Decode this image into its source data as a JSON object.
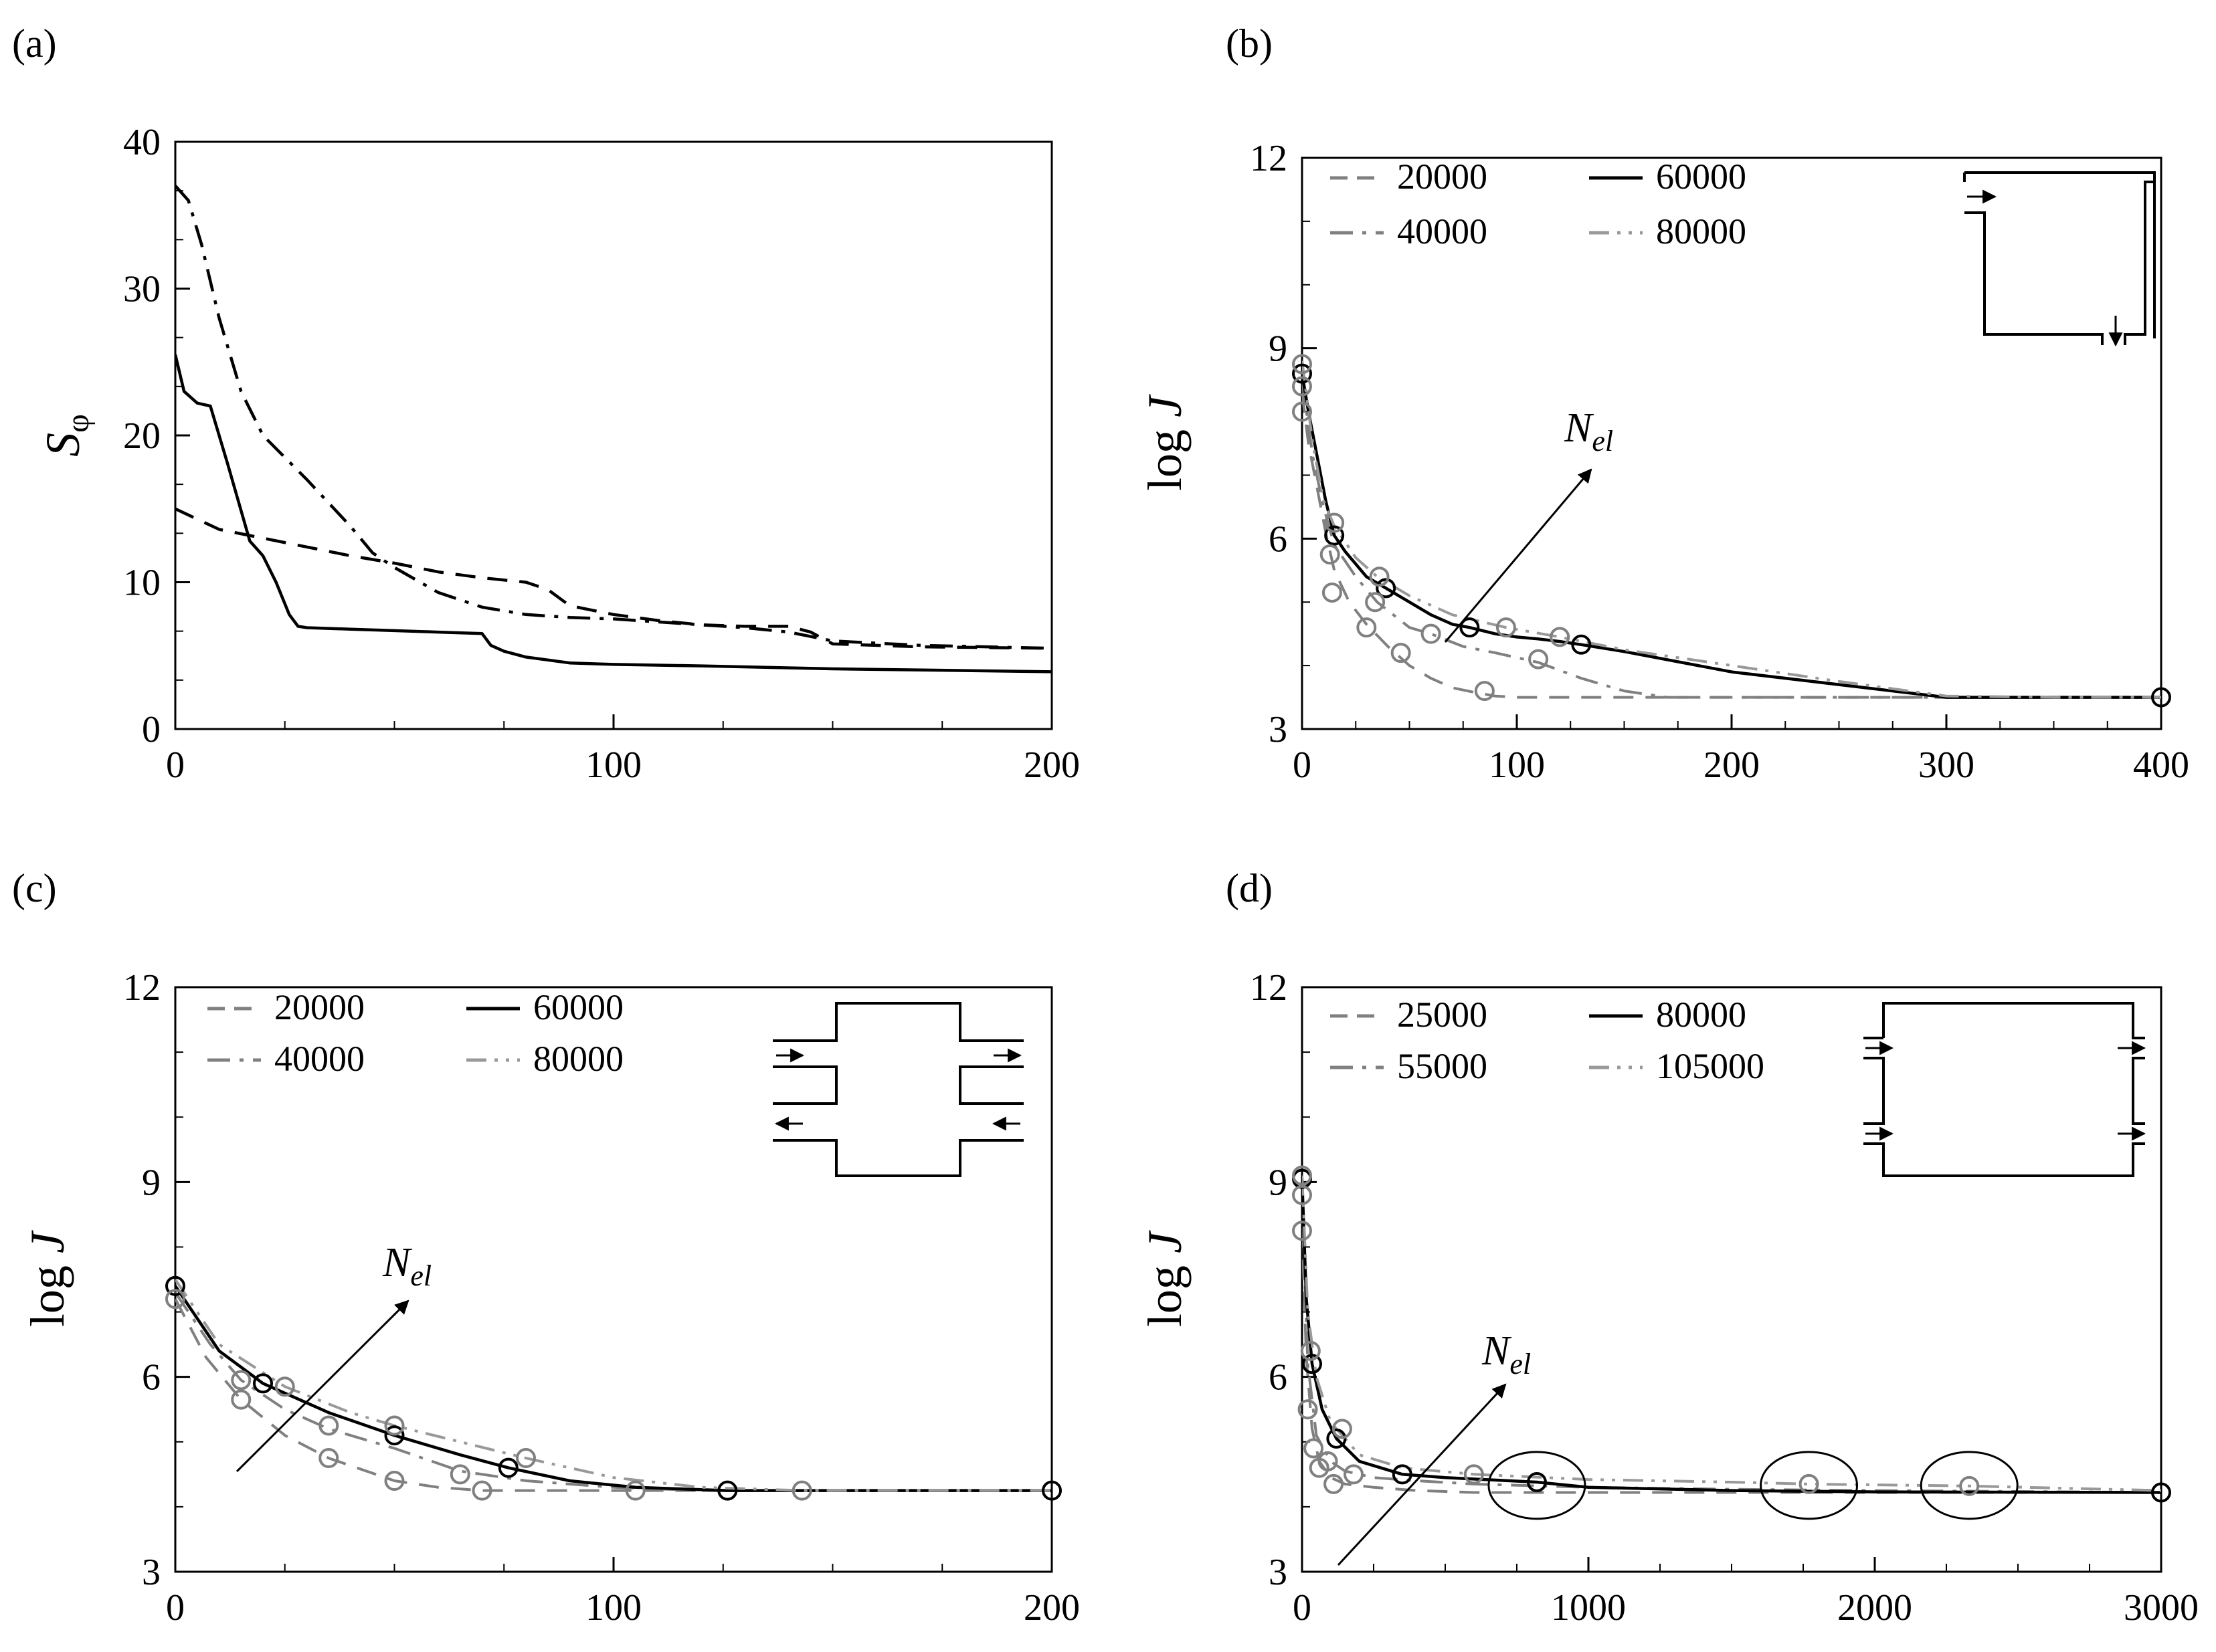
{
  "colors": {
    "black": "#000000",
    "gray": "#808080",
    "lightgray": "#999999"
  },
  "annotation": {
    "nel_main": "N",
    "nel_sub": "el"
  },
  "chart_data": [
    {
      "id": "a",
      "panel_label": "(a)",
      "type": "line",
      "ylabel": "S",
      "ylabel_sub": "φ",
      "xlim": [
        0,
        200
      ],
      "ylim": [
        0,
        40
      ],
      "xticks": [
        0,
        100,
        200
      ],
      "xtick_labels": [
        "0",
        "100",
        "200"
      ],
      "yticks": [
        0,
        10,
        20,
        30,
        40
      ],
      "ytick_labels": [
        "0",
        "10",
        "20",
        "30",
        "40"
      ],
      "legend": [],
      "series": [
        {
          "name": "dashed",
          "style": "dash",
          "color": "#000000",
          "x": [
            0,
            10,
            20,
            30,
            40,
            50,
            60,
            70,
            80,
            85,
            90,
            100,
            110,
            120,
            130,
            140,
            145,
            150,
            170,
            200
          ],
          "y": [
            15,
            13.6,
            13,
            12.4,
            11.8,
            11.3,
            10.7,
            10.3,
            10.0,
            9.5,
            8.4,
            7.8,
            7.4,
            7.1,
            7.0,
            7.0,
            6.6,
            5.8,
            5.6,
            5.5
          ]
        },
        {
          "name": "dash-dot",
          "style": "dashdot",
          "color": "#000000",
          "x": [
            0,
            3,
            6,
            10,
            15,
            20,
            30,
            40,
            45,
            50,
            60,
            70,
            80,
            90,
            100,
            110,
            120,
            130,
            140,
            150,
            170,
            200
          ],
          "y": [
            37,
            36,
            33,
            28,
            23,
            20,
            17,
            13.8,
            12,
            11,
            9.3,
            8.3,
            7.8,
            7.6,
            7.5,
            7.3,
            7.1,
            6.9,
            6.6,
            6.0,
            5.7,
            5.5
          ]
        },
        {
          "name": "solid",
          "style": "solid",
          "color": "#000000",
          "x": [
            0,
            2,
            5,
            8,
            12,
            17,
            20,
            23,
            26,
            28,
            30,
            40,
            50,
            60,
            70,
            72,
            75,
            80,
            90,
            100,
            120,
            150,
            200
          ],
          "y": [
            25.5,
            23,
            22.2,
            22,
            18,
            12.8,
            11.8,
            10,
            7.8,
            7.0,
            6.9,
            6.8,
            6.7,
            6.6,
            6.5,
            5.7,
            5.3,
            4.9,
            4.5,
            4.4,
            4.3,
            4.1,
            3.9
          ]
        }
      ],
      "markers": [],
      "ellipses": []
    },
    {
      "id": "b",
      "panel_label": "(b)",
      "type": "line",
      "ylabel": "log J",
      "xlim": [
        0,
        400
      ],
      "ylim": [
        3,
        12
      ],
      "xticks": [
        0,
        100,
        200,
        300,
        400
      ],
      "xtick_labels": [
        "0",
        "100",
        "200",
        "300",
        "400"
      ],
      "yticks": [
        3,
        6,
        9,
        12
      ],
      "ytick_labels": [
        "3",
        "6",
        "9",
        "12"
      ],
      "legend": [
        {
          "label": "20000",
          "style": "dash",
          "color": "#808080"
        },
        {
          "label": "60000",
          "style": "solid",
          "color": "#000000"
        },
        {
          "label": "40000",
          "style": "dashdot",
          "color": "#808080"
        },
        {
          "label": "80000",
          "style": "dashdotdot",
          "color": "#999999"
        }
      ],
      "series": [
        {
          "name": "20000",
          "style": "dash",
          "color": "#808080",
          "x": [
            0,
            3,
            7,
            11,
            15,
            22,
            30,
            40,
            50,
            60,
            70,
            80,
            90,
            100,
            120,
            150,
            200,
            400
          ],
          "y": [
            8.3,
            7.5,
            6.8,
            6.1,
            5.5,
            5.0,
            4.65,
            4.3,
            4.0,
            3.8,
            3.65,
            3.58,
            3.52,
            3.5,
            3.5,
            3.5,
            3.5,
            3.5
          ]
        },
        {
          "name": "40000",
          "style": "dashdot",
          "color": "#808080",
          "x": [
            0,
            5,
            10,
            15,
            25,
            35,
            50,
            60,
            75,
            90,
            110,
            130,
            150,
            170,
            200,
            400
          ],
          "y": [
            8.5,
            7.3,
            6.5,
            5.9,
            5.4,
            5.0,
            4.6,
            4.5,
            4.3,
            4.2,
            4.05,
            3.8,
            3.6,
            3.5,
            3.5,
            3.5
          ]
        },
        {
          "name": "60000",
          "style": "solid",
          "color": "#000000",
          "x": [
            0,
            3,
            7,
            11,
            15,
            20,
            30,
            39,
            50,
            60,
            70,
            78,
            90,
            100,
            110,
            120,
            130,
            150,
            200,
            250,
            300,
            350,
            400
          ],
          "y": [
            8.6,
            8.0,
            7.3,
            6.6,
            6.05,
            5.8,
            5.4,
            5.22,
            5.0,
            4.8,
            4.65,
            4.6,
            4.5,
            4.45,
            4.42,
            4.38,
            4.33,
            4.22,
            3.9,
            3.7,
            3.5,
            3.5,
            3.5
          ]
        },
        {
          "name": "80000",
          "style": "dashdotdot",
          "color": "#999999",
          "x": [
            0,
            5,
            10,
            15,
            25,
            35,
            50,
            70,
            95,
            120,
            150,
            200,
            250,
            300,
            350,
            400
          ],
          "y": [
            8.8,
            7.5,
            6.6,
            6.2,
            5.7,
            5.4,
            5.1,
            4.8,
            4.6,
            4.45,
            4.25,
            4.0,
            3.75,
            3.52,
            3.5,
            3.5
          ]
        }
      ],
      "markers": [
        {
          "x": 0,
          "y": 8.6,
          "color": "#000000"
        },
        {
          "x": 15,
          "y": 6.05,
          "color": "#000000"
        },
        {
          "x": 39,
          "y": 5.22,
          "color": "#000000"
        },
        {
          "x": 78,
          "y": 4.6,
          "color": "#000000"
        },
        {
          "x": 130,
          "y": 4.33,
          "color": "#000000"
        },
        {
          "x": 400,
          "y": 3.5,
          "color": "#000000"
        },
        {
          "x": 0,
          "y": 8.75,
          "color": "#808080"
        },
        {
          "x": 0,
          "y": 8.4,
          "color": "#808080"
        },
        {
          "x": 0,
          "y": 8.0,
          "color": "#808080"
        },
        {
          "x": 15,
          "y": 6.25,
          "color": "#808080"
        },
        {
          "x": 13,
          "y": 5.75,
          "color": "#808080"
        },
        {
          "x": 14,
          "y": 5.15,
          "color": "#808080"
        },
        {
          "x": 36,
          "y": 5.4,
          "color": "#808080"
        },
        {
          "x": 34,
          "y": 5.0,
          "color": "#808080"
        },
        {
          "x": 30,
          "y": 4.6,
          "color": "#808080"
        },
        {
          "x": 60,
          "y": 4.5,
          "color": "#808080"
        },
        {
          "x": 46,
          "y": 4.2,
          "color": "#808080"
        },
        {
          "x": 95,
          "y": 4.6,
          "color": "#808080"
        },
        {
          "x": 110,
          "y": 4.1,
          "color": "#808080"
        },
        {
          "x": 85,
          "y": 3.6,
          "color": "#808080"
        },
        {
          "x": 120,
          "y": 4.45,
          "color": "#808080"
        }
      ],
      "ellipses": []
    },
    {
      "id": "c",
      "panel_label": "(c)",
      "type": "line",
      "ylabel": "log J",
      "xlim": [
        0,
        200
      ],
      "ylim": [
        3,
        12
      ],
      "xticks": [
        0,
        100,
        200
      ],
      "xtick_labels": [
        "0",
        "100",
        "200"
      ],
      "yticks": [
        3,
        6,
        9,
        12
      ],
      "ytick_labels": [
        "3",
        "6",
        "9",
        "12"
      ],
      "legend": [
        {
          "label": "20000",
          "style": "dash",
          "color": "#808080"
        },
        {
          "label": "60000",
          "style": "solid",
          "color": "#000000"
        },
        {
          "label": "40000",
          "style": "dashdot",
          "color": "#808080"
        },
        {
          "label": "80000",
          "style": "dashdotdot",
          "color": "#999999"
        }
      ],
      "series": [
        {
          "name": "20000",
          "style": "dash",
          "color": "#808080",
          "x": [
            0,
            7,
            15,
            25,
            35,
            50,
            60,
            70,
            80,
            100,
            130,
            200
          ],
          "y": [
            7.2,
            6.3,
            5.65,
            5.1,
            4.75,
            4.4,
            4.3,
            4.25,
            4.25,
            4.25,
            4.25,
            4.25
          ]
        },
        {
          "name": "40000",
          "style": "dashdot",
          "color": "#808080",
          "x": [
            0,
            8,
            15,
            25,
            35,
            50,
            65,
            80,
            100,
            120,
            200
          ],
          "y": [
            7.3,
            6.5,
            5.95,
            5.5,
            5.2,
            4.9,
            4.55,
            4.4,
            4.3,
            4.25,
            4.25
          ]
        },
        {
          "name": "60000",
          "style": "solid",
          "color": "#000000",
          "x": [
            0,
            10,
            20,
            35,
            50,
            65,
            76,
            90,
            105,
            126,
            150,
            200
          ],
          "y": [
            7.4,
            6.4,
            5.9,
            5.45,
            5.1,
            4.8,
            4.6,
            4.4,
            4.3,
            4.25,
            4.25,
            4.25
          ]
        },
        {
          "name": "80000",
          "style": "dashdotdot",
          "color": "#999999",
          "x": [
            0,
            10,
            25,
            40,
            50,
            65,
            80,
            100,
            120,
            143,
            200
          ],
          "y": [
            7.5,
            6.5,
            5.85,
            5.45,
            5.25,
            5.0,
            4.75,
            4.45,
            4.3,
            4.25,
            4.25
          ]
        }
      ],
      "markers": [
        {
          "x": 0,
          "y": 7.4,
          "color": "#000000"
        },
        {
          "x": 20,
          "y": 5.9,
          "color": "#000000"
        },
        {
          "x": 50,
          "y": 5.1,
          "color": "#000000"
        },
        {
          "x": 76,
          "y": 4.6,
          "color": "#000000"
        },
        {
          "x": 126,
          "y": 4.25,
          "color": "#000000"
        },
        {
          "x": 200,
          "y": 4.25,
          "color": "#000000"
        },
        {
          "x": 0,
          "y": 7.2,
          "color": "#808080"
        },
        {
          "x": 15,
          "y": 5.65,
          "color": "#808080"
        },
        {
          "x": 15,
          "y": 5.95,
          "color": "#808080"
        },
        {
          "x": 25,
          "y": 5.85,
          "color": "#808080"
        },
        {
          "x": 35,
          "y": 5.25,
          "color": "#808080"
        },
        {
          "x": 35,
          "y": 4.75,
          "color": "#808080"
        },
        {
          "x": 50,
          "y": 5.25,
          "color": "#808080"
        },
        {
          "x": 50,
          "y": 4.4,
          "color": "#808080"
        },
        {
          "x": 65,
          "y": 4.5,
          "color": "#808080"
        },
        {
          "x": 70,
          "y": 4.25,
          "color": "#808080"
        },
        {
          "x": 80,
          "y": 4.75,
          "color": "#808080"
        },
        {
          "x": 105,
          "y": 4.25,
          "color": "#808080"
        },
        {
          "x": 143,
          "y": 4.25,
          "color": "#808080"
        }
      ],
      "ellipses": []
    },
    {
      "id": "d",
      "panel_label": "(d)",
      "type": "line",
      "ylabel": "log J",
      "xlim": [
        0,
        3000
      ],
      "ylim": [
        3,
        12
      ],
      "xticks": [
        0,
        1000,
        2000,
        3000
      ],
      "xtick_labels": [
        "0",
        "1000",
        "2000",
        "3000"
      ],
      "yticks": [
        3,
        6,
        9,
        12
      ],
      "ytick_labels": [
        "3",
        "6",
        "9",
        "12"
      ],
      "legend": [
        {
          "label": "25000",
          "style": "dash",
          "color": "#808080"
        },
        {
          "label": "80000",
          "style": "solid",
          "color": "#000000"
        },
        {
          "label": "55000",
          "style": "dashdot",
          "color": "#808080"
        },
        {
          "label": "105000",
          "style": "dashdotdot",
          "color": "#999999"
        }
      ],
      "series": [
        {
          "name": "25000",
          "style": "dash",
          "color": "#808080",
          "x": [
            0,
            15,
            35,
            60,
            100,
            150,
            250,
            400,
            600,
            1000,
            3000
          ],
          "y": [
            8.3,
            6.3,
            5.2,
            4.7,
            4.45,
            4.35,
            4.3,
            4.25,
            4.22,
            4.22,
            4.22
          ]
        },
        {
          "name": "55000",
          "style": "dashdot",
          "color": "#808080",
          "x": [
            0,
            20,
            50,
            100,
            150,
            250,
            400,
            600,
            1000,
            1500,
            2000,
            3000
          ],
          "y": [
            8.8,
            6.2,
            5.1,
            4.7,
            4.55,
            4.45,
            4.4,
            4.35,
            4.3,
            4.27,
            4.25,
            4.22
          ]
        },
        {
          "name": "80000",
          "style": "solid",
          "color": "#000000",
          "x": [
            0,
            15,
            35,
            70,
            120,
            200,
            350,
            500,
            820,
            1000,
            1500,
            2000,
            3000
          ],
          "y": [
            9.05,
            7.2,
            6.2,
            5.5,
            5.05,
            4.7,
            4.5,
            4.45,
            4.38,
            4.3,
            4.25,
            4.23,
            4.22
          ]
        },
        {
          "name": "105000",
          "style": "dashdotdot",
          "color": "#999999",
          "x": [
            0,
            20,
            50,
            100,
            200,
            350,
            600,
            1000,
            1500,
            1770,
            2330,
            3000
          ],
          "y": [
            9.1,
            7.0,
            6.0,
            5.3,
            4.8,
            4.6,
            4.5,
            4.42,
            4.38,
            4.35,
            4.32,
            4.25
          ]
        }
      ],
      "markers": [
        {
          "x": 0,
          "y": 9.05,
          "color": "#000000"
        },
        {
          "x": 35,
          "y": 6.2,
          "color": "#000000"
        },
        {
          "x": 120,
          "y": 5.05,
          "color": "#000000"
        },
        {
          "x": 350,
          "y": 4.5,
          "color": "#000000"
        },
        {
          "x": 820,
          "y": 4.38,
          "color": "#000000"
        },
        {
          "x": 3000,
          "y": 4.22,
          "color": "#000000"
        },
        {
          "x": 0,
          "y": 9.1,
          "color": "#808080"
        },
        {
          "x": 0,
          "y": 8.8,
          "color": "#808080"
        },
        {
          "x": 0,
          "y": 8.25,
          "color": "#808080"
        },
        {
          "x": 30,
          "y": 6.4,
          "color": "#808080"
        },
        {
          "x": 20,
          "y": 5.5,
          "color": "#808080"
        },
        {
          "x": 40,
          "y": 4.9,
          "color": "#808080"
        },
        {
          "x": 60,
          "y": 4.6,
          "color": "#808080"
        },
        {
          "x": 90,
          "y": 4.7,
          "color": "#808080"
        },
        {
          "x": 110,
          "y": 4.35,
          "color": "#808080"
        },
        {
          "x": 140,
          "y": 5.2,
          "color": "#808080"
        },
        {
          "x": 180,
          "y": 4.5,
          "color": "#808080"
        },
        {
          "x": 600,
          "y": 4.5,
          "color": "#808080"
        },
        {
          "x": 1770,
          "y": 4.35,
          "color": "#808080"
        },
        {
          "x": 2330,
          "y": 4.32,
          "color": "#808080"
        }
      ],
      "ellipses": [
        {
          "x": 820,
          "y": 4.33
        },
        {
          "x": 1770,
          "y": 4.33
        },
        {
          "x": 2330,
          "y": 4.33
        }
      ]
    }
  ]
}
